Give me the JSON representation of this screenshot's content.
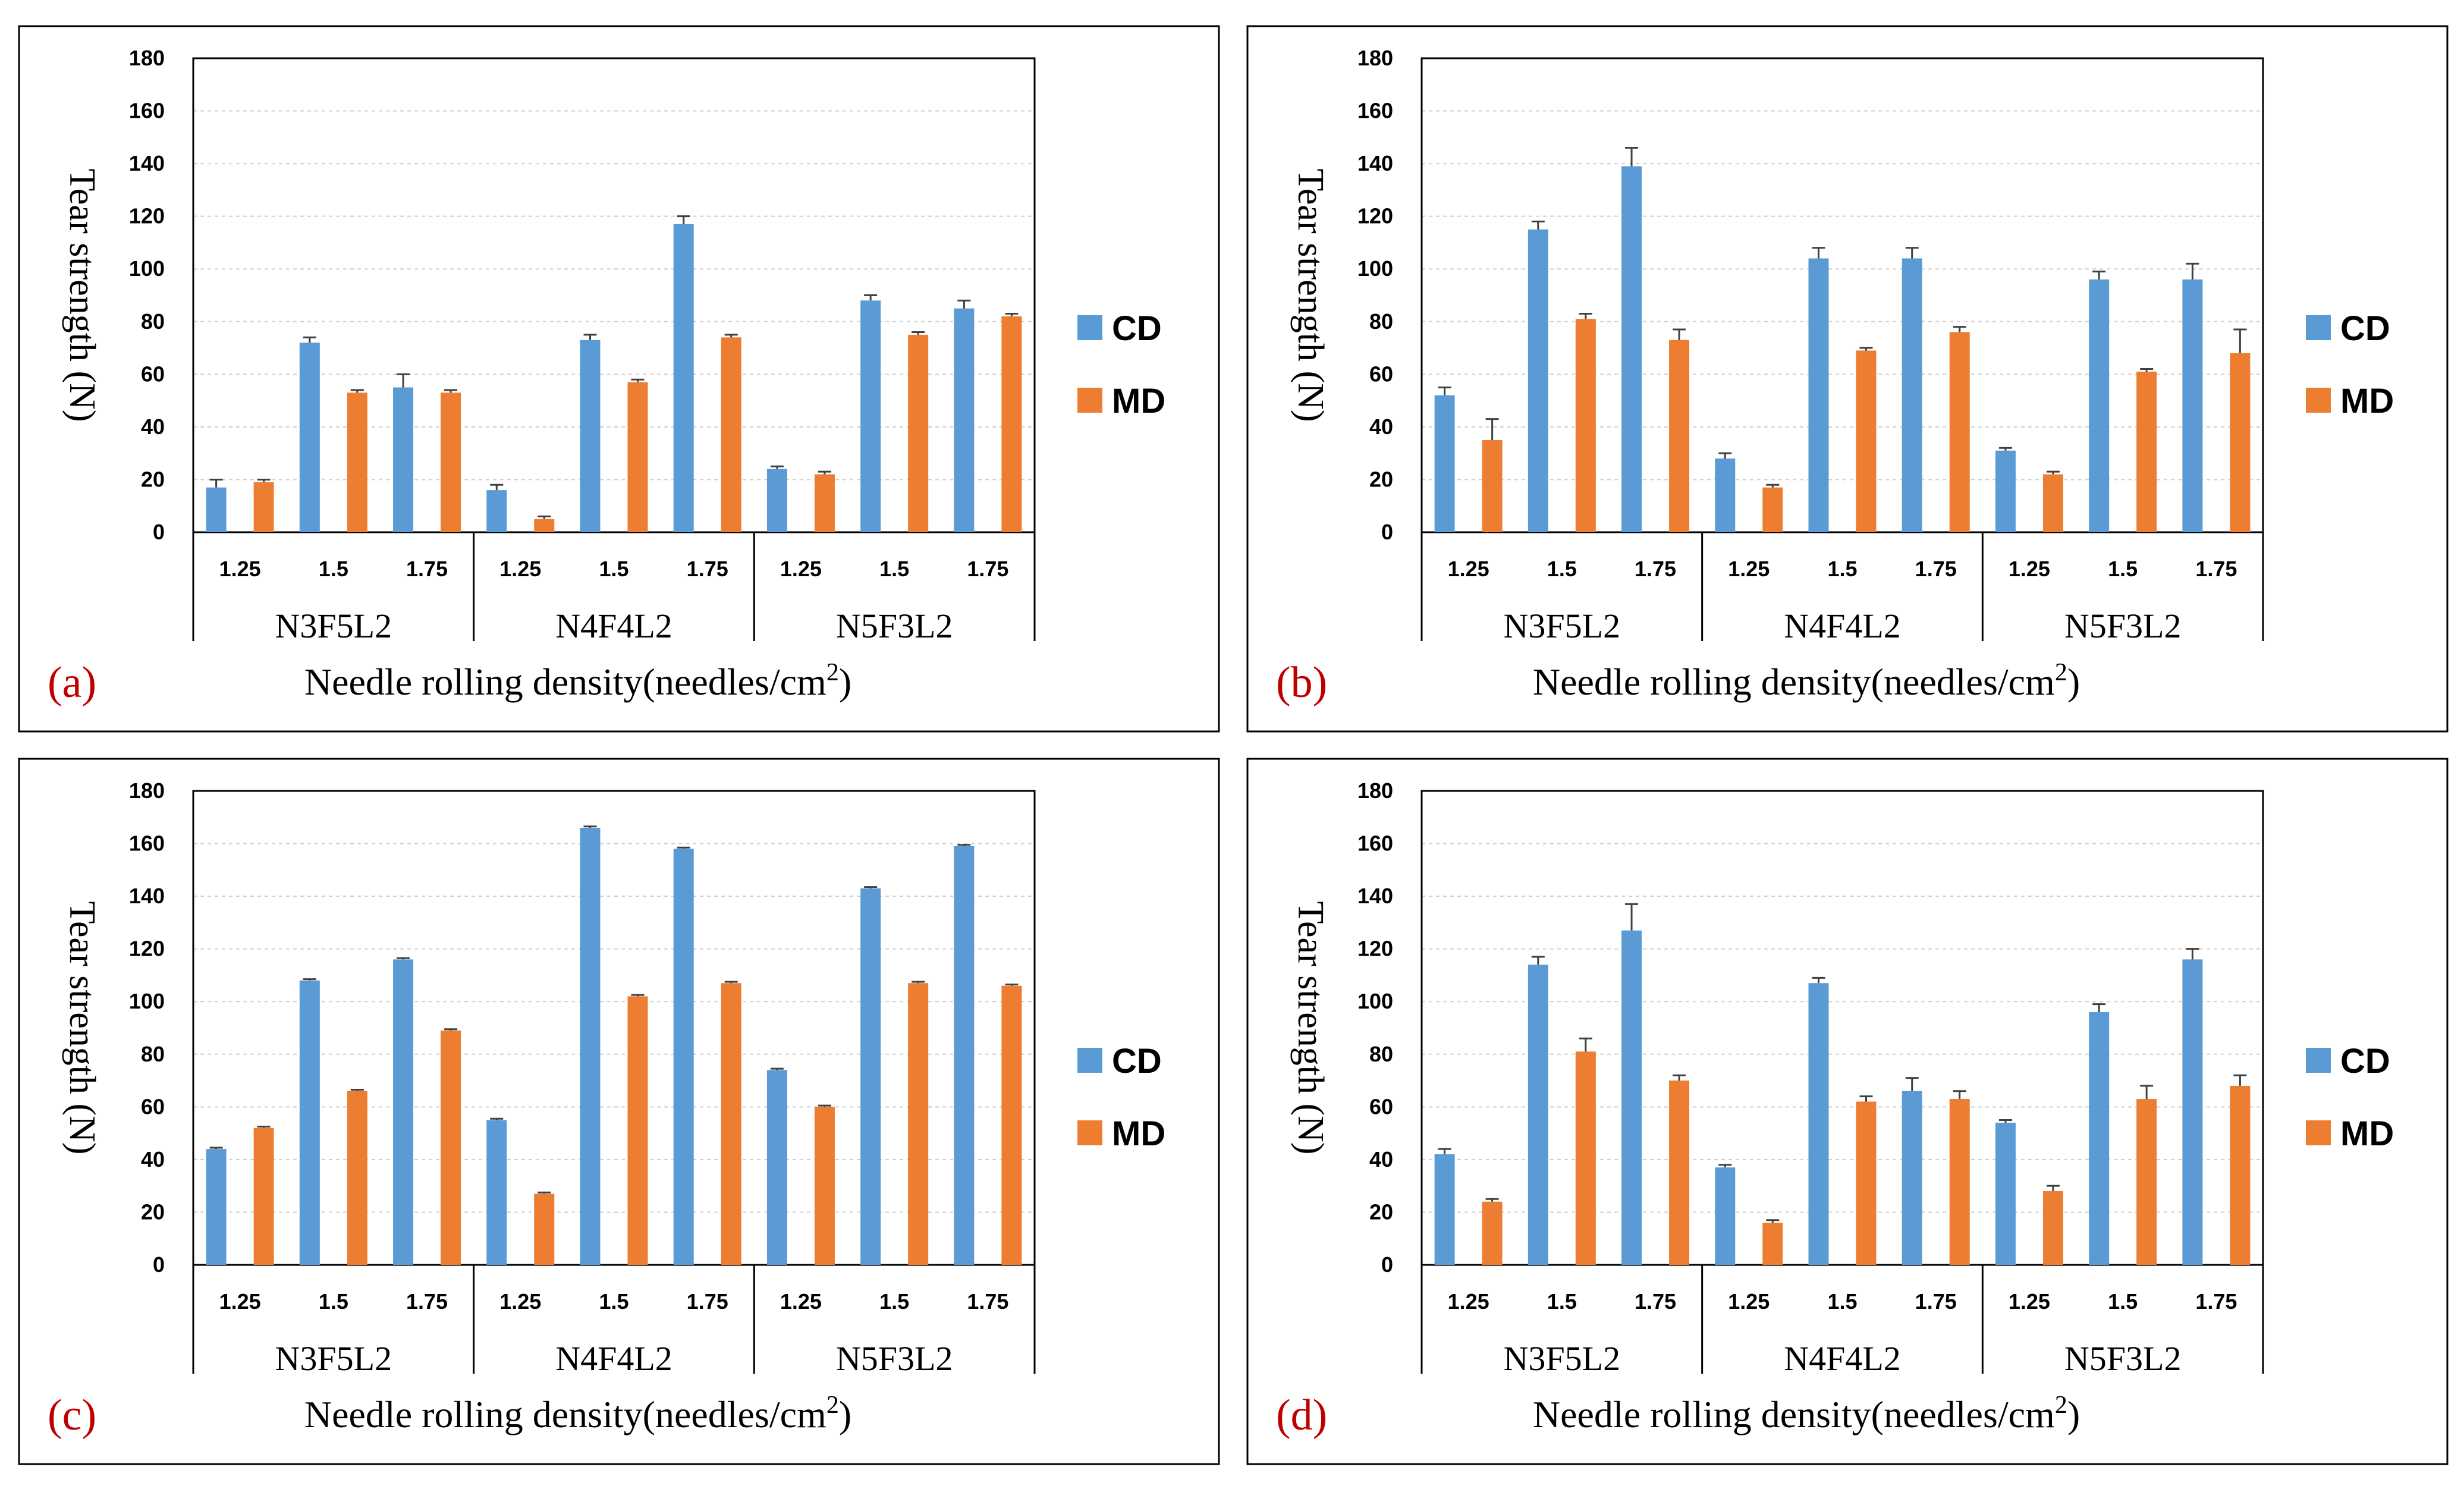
{
  "chart_data": [
    {
      "type": "bar",
      "panel_label": "(a)",
      "title": "",
      "xlabel": "Needle rolling density(needles/cm",
      "xlabel_sup": "2",
      "xlabel_close": ")",
      "ylabel": "Tear strength (N)",
      "ylim": [
        0,
        180
      ],
      "y_ticks": [
        "0",
        "20",
        "40",
        "60",
        "80",
        "100",
        "120",
        "140",
        "160",
        "180"
      ],
      "groups": [
        "N3F5L2",
        "N4F4L2",
        "N5F3L2"
      ],
      "categories": [
        "1.25",
        "1.5",
        "1.75",
        "1.25",
        "1.5",
        "1.75",
        "1.25",
        "1.5",
        "1.75"
      ],
      "series": [
        {
          "name": "CD",
          "color": "#5B9BD5",
          "values": [
            17,
            72,
            55,
            16,
            73,
            117,
            24,
            88,
            85
          ],
          "errors": [
            3,
            2,
            5,
            2,
            2,
            3,
            1,
            2,
            3
          ]
        },
        {
          "name": "MD",
          "color": "#ED7D31",
          "values": [
            19,
            53,
            53,
            5,
            57,
            74,
            22,
            75,
            82
          ],
          "errors": [
            1,
            1,
            1,
            1,
            1,
            1,
            1,
            1,
            1
          ]
        }
      ],
      "legend": "right"
    },
    {
      "type": "bar",
      "panel_label": "(b)",
      "title": "",
      "xlabel": "Needle rolling density(needles/cm",
      "xlabel_sup": "2",
      "xlabel_close": ")",
      "ylabel": "Tear strength (N)",
      "ylim": [
        0,
        180
      ],
      "y_ticks": [
        "0",
        "20",
        "40",
        "60",
        "80",
        "100",
        "120",
        "140",
        "160",
        "180"
      ],
      "groups": [
        "N3F5L2",
        "N4F4L2",
        "N5F3L2"
      ],
      "categories": [
        "1.25",
        "1.5",
        "1.75",
        "1.25",
        "1.5",
        "1.75",
        "1.25",
        "1.5",
        "1.75"
      ],
      "series": [
        {
          "name": "CD",
          "color": "#5B9BD5",
          "values": [
            52,
            115,
            139,
            28,
            104,
            104,
            31,
            96,
            96
          ],
          "errors": [
            3,
            3,
            7,
            2,
            4,
            4,
            1,
            3,
            6
          ]
        },
        {
          "name": "MD",
          "color": "#ED7D31",
          "values": [
            35,
            81,
            73,
            17,
            69,
            76,
            22,
            61,
            68
          ],
          "errors": [
            8,
            2,
            4,
            1,
            1,
            2,
            1,
            1,
            9
          ]
        }
      ],
      "legend": "right"
    },
    {
      "type": "bar",
      "panel_label": "(c)",
      "title": "",
      "xlabel": "Needle rolling density(needles/cm",
      "xlabel_sup": "2",
      "xlabel_close": ")",
      "ylabel": "Tear strength (N)",
      "ylim": [
        0,
        180
      ],
      "y_ticks": [
        "0",
        "20",
        "40",
        "60",
        "80",
        "100",
        "120",
        "140",
        "160",
        "180"
      ],
      "groups": [
        "N3F5L2",
        "N4F4L2",
        "N5F3L2"
      ],
      "categories": [
        "1.25",
        "1.5",
        "1.75",
        "1.25",
        "1.5",
        "1.75",
        "1.25",
        "1.5",
        "1.75"
      ],
      "series": [
        {
          "name": "CD",
          "color": "#5B9BD5",
          "values": [
            44,
            108,
            116,
            55,
            166,
            158,
            74,
            143,
            159
          ],
          "errors": [
            0.5,
            0.5,
            0.5,
            0.5,
            0.5,
            0.5,
            0.5,
            0.5,
            0.5
          ]
        },
        {
          "name": "MD",
          "color": "#ED7D31",
          "values": [
            52,
            66,
            89,
            27,
            102,
            107,
            60,
            107,
            106
          ],
          "errors": [
            0.5,
            0.5,
            0.5,
            0.5,
            0.5,
            0.5,
            0.5,
            0.5,
            0.5
          ]
        }
      ],
      "legend": "right"
    },
    {
      "type": "bar",
      "panel_label": "(d)",
      "title": "",
      "xlabel": "Needle rolling density(needles/cm",
      "xlabel_sup": "2",
      "xlabel_close": ")",
      "ylabel": "Tear strength (N)",
      "ylim": [
        0,
        180
      ],
      "y_ticks": [
        "0",
        "20",
        "40",
        "60",
        "80",
        "100",
        "120",
        "140",
        "160",
        "180"
      ],
      "groups": [
        "N3F5L2",
        "N4F4L2",
        "N5F3L2"
      ],
      "categories": [
        "1.25",
        "1.5",
        "1.75",
        "1.25",
        "1.5",
        "1.75",
        "1.25",
        "1.5",
        "1.75"
      ],
      "series": [
        {
          "name": "CD",
          "color": "#5B9BD5",
          "values": [
            42,
            114,
            127,
            37,
            107,
            66,
            54,
            96,
            116
          ],
          "errors": [
            2,
            3,
            10,
            1,
            2,
            5,
            1,
            3,
            4
          ]
        },
        {
          "name": "MD",
          "color": "#ED7D31",
          "values": [
            24,
            81,
            70,
            16,
            62,
            63,
            28,
            63,
            68
          ],
          "errors": [
            1,
            5,
            2,
            1,
            2,
            3,
            2,
            5,
            4
          ]
        }
      ],
      "legend": "right"
    }
  ]
}
